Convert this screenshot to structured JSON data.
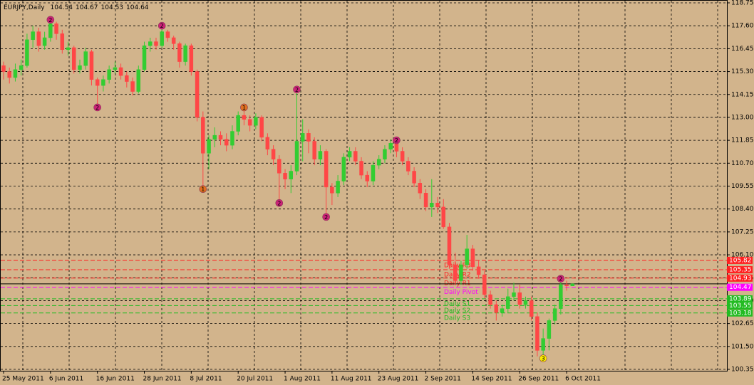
{
  "chart_data": {
    "type": "candlestick",
    "title": "EURJPY,Daily",
    "categories": [
      "25 May 2011",
      null,
      null,
      null,
      null,
      null,
      null,
      null,
      "6 Jun 2011",
      null,
      null,
      null,
      null,
      null,
      null,
      null,
      "16 Jun 2011",
      null,
      null,
      null,
      null,
      null,
      null,
      null,
      "28 Jun 2011",
      null,
      null,
      null,
      null,
      null,
      null,
      null,
      "8 Jul 2011",
      null,
      null,
      null,
      null,
      null,
      null,
      null,
      "20 Jul 2011",
      null,
      null,
      null,
      null,
      null,
      null,
      null,
      "1 Aug 2011",
      null,
      null,
      null,
      null,
      null,
      null,
      null,
      "11 Aug 2011",
      null,
      null,
      null,
      null,
      null,
      null,
      null,
      "23 Aug 2011",
      null,
      null,
      null,
      null,
      null,
      null,
      null,
      "2 Sep 2011",
      null,
      null,
      null,
      null,
      null,
      null,
      null,
      "14 Sep 2011",
      null,
      null,
      null,
      null,
      null,
      null,
      null,
      "26 Sep 2011",
      null,
      null,
      null,
      null,
      null,
      null,
      null,
      "6 Oct 2011",
      null
    ],
    "open": [
      115.6,
      115.3,
      115.0,
      115.4,
      115.6,
      116.9,
      117.3,
      116.6,
      117.0,
      117.7,
      117.2,
      116.4,
      116.5,
      115.4,
      115.6,
      116.3,
      114.9,
      114.6,
      114.9,
      115.4,
      115.5,
      115.1,
      114.8,
      114.3,
      115.4,
      116.6,
      116.8,
      116.6,
      117.3,
      117.0,
      116.7,
      115.8,
      116.6,
      115.3,
      113.0,
      111.2,
      111.9,
      112.1,
      111.9,
      111.6,
      112.3,
      113.1,
      112.9,
      112.6,
      113.0,
      112.0,
      111.4,
      110.9,
      110.2,
      109.9,
      110.3,
      111.8,
      112.2,
      111.8,
      110.9,
      111.3,
      109.5,
      109.2,
      109.8,
      111.0,
      111.3,
      110.8,
      110.1,
      109.8,
      110.6,
      110.9,
      111.4,
      111.7,
      111.3,
      110.8,
      110.3,
      109.7,
      109.2,
      108.5,
      108.7,
      108.5,
      107.5,
      105.6,
      104.8,
      105.6,
      106.4,
      105.5,
      105.1,
      104.1,
      103.6,
      103.2,
      103.4,
      104.0,
      104.2,
      103.6,
      103.8,
      103.0,
      101.3,
      101.9,
      102.8,
      103.4,
      104.6,
      104.54
    ],
    "high": [
      115.8,
      115.5,
      115.7,
      115.9,
      117.2,
      117.6,
      117.5,
      117.3,
      117.9,
      117.8,
      117.4,
      116.8,
      116.6,
      115.9,
      116.5,
      116.4,
      115.0,
      115.1,
      115.6,
      115.8,
      115.7,
      115.3,
      115.0,
      115.6,
      116.8,
      117.0,
      117.0,
      117.6,
      117.4,
      117.1,
      116.8,
      116.7,
      116.7,
      115.4,
      113.3,
      112.1,
      112.5,
      112.3,
      112.2,
      112.6,
      113.3,
      113.5,
      113.1,
      113.2,
      113.1,
      112.2,
      111.6,
      111.1,
      110.4,
      110.6,
      114.4,
      112.9,
      112.4,
      112.0,
      111.6,
      111.4,
      109.7,
      110.1,
      111.2,
      111.5,
      111.5,
      111.0,
      110.3,
      110.8,
      111.1,
      111.6,
      111.9,
      111.85,
      111.5,
      111.0,
      110.5,
      109.9,
      109.4,
      109.9,
      109.0,
      108.9,
      107.7,
      106.2,
      105.8,
      107.1,
      106.6,
      105.8,
      105.3,
      104.3,
      103.8,
      103.6,
      104.4,
      104.7,
      104.6,
      104.0,
      104.0,
      103.2,
      102.4,
      102.9,
      103.6,
      104.9,
      104.8,
      104.67
    ],
    "low": [
      114.9,
      114.7,
      114.8,
      115.1,
      115.5,
      116.5,
      116.3,
      116.4,
      116.8,
      116.9,
      116.2,
      116.1,
      115.2,
      115.2,
      115.4,
      114.6,
      113.5,
      114.3,
      114.7,
      115.2,
      114.9,
      114.5,
      114.1,
      114.2,
      115.3,
      116.3,
      116.4,
      116.5,
      116.8,
      116.4,
      115.5,
      115.6,
      115.1,
      112.8,
      109.4,
      110.4,
      111.5,
      111.6,
      111.3,
      111.4,
      112.1,
      112.6,
      112.3,
      112.4,
      111.8,
      111.1,
      110.6,
      108.7,
      109.4,
      109.2,
      110.1,
      110.8,
      111.2,
      110.6,
      110.6,
      108.0,
      108.6,
      109.0,
      109.6,
      110.8,
      110.6,
      109.9,
      109.5,
      109.6,
      110.4,
      110.7,
      111.2,
      111.0,
      110.6,
      110.1,
      109.5,
      108.9,
      108.3,
      108.0,
      108.2,
      107.4,
      105.4,
      104.6,
      104.6,
      105.4,
      105.3,
      104.9,
      103.9,
      103.4,
      102.8,
      103.0,
      103.2,
      103.8,
      103.4,
      103.4,
      102.8,
      101.0,
      100.9,
      101.3,
      102.6,
      103.1,
      104.3,
      104.53
    ],
    "close": [
      115.3,
      115.0,
      115.4,
      115.6,
      116.9,
      117.3,
      116.6,
      117.0,
      117.7,
      117.2,
      116.4,
      116.5,
      115.4,
      115.6,
      116.3,
      114.9,
      114.6,
      114.9,
      115.4,
      115.5,
      115.1,
      114.8,
      114.3,
      115.4,
      116.6,
      116.8,
      116.6,
      117.3,
      117.0,
      116.7,
      115.8,
      116.6,
      115.3,
      113.0,
      111.2,
      111.9,
      112.1,
      111.9,
      111.6,
      112.3,
      113.1,
      112.9,
      112.6,
      113.0,
      112.0,
      111.4,
      110.9,
      110.2,
      109.9,
      110.3,
      111.8,
      112.2,
      111.8,
      110.9,
      111.3,
      109.5,
      109.2,
      109.8,
      111.0,
      111.3,
      110.8,
      110.1,
      109.8,
      110.6,
      110.9,
      111.4,
      111.7,
      111.3,
      110.8,
      110.3,
      109.7,
      109.2,
      108.5,
      108.7,
      108.5,
      107.5,
      105.6,
      104.8,
      105.6,
      106.4,
      105.5,
      105.1,
      104.1,
      103.6,
      103.2,
      103.4,
      104.0,
      104.2,
      103.6,
      103.8,
      103.0,
      101.3,
      101.9,
      102.8,
      103.4,
      104.6,
      104.54,
      104.64
    ],
    "up_color": "#32cd32",
    "down_color": "#ff4646",
    "ylim": [
      100.35,
      118.75
    ],
    "yticks": [
      118.75,
      {
        "value": 117.6,
        "label": "117.60"
      },
      116.45,
      {
        "value": 115.3,
        "label": "115.30"
      },
      114.15,
      {
        "value": 113,
        "label": "113.00"
      },
      111.85,
      {
        "value": 110.7,
        "label": "110.70"
      },
      109.55,
      {
        "value": 108.4,
        "label": "108.40"
      },
      107.25,
      {
        "value": 106.1,
        "label": "106.10"
      },
      104.95,
      {
        "value": 103.8,
        "label": "103.80"
      },
      102.65,
      {
        "value": 101.5,
        "label": "101.50"
      },
      100.35
    ],
    "grid": true,
    "levels": [
      {
        "name": "Daily R3",
        "value": 105.82,
        "color": "#ff2020"
      },
      {
        "name": "Daily R2",
        "value": 105.35,
        "color": "#ff2020"
      },
      {
        "name": "Daily R1",
        "value": 104.93,
        "color": "#ff2020"
      },
      {
        "name": "Daily Pivot",
        "value": 104.47,
        "color": "#ff00ff"
      },
      {
        "name": "Daily S1",
        "value": 103.89,
        "color": "#22bb22"
      },
      {
        "name": "Daily S2",
        "value": 103.55,
        "color": "#22bb22"
      },
      {
        "name": "Daily S3",
        "value": 103.18,
        "color": "#22bb22"
      }
    ],
    "markers": [
      {
        "index": 8,
        "value": 117.9,
        "label": "2",
        "color": "#cc2277"
      },
      {
        "index": 16,
        "value": 113.5,
        "label": "2",
        "color": "#cc2277"
      },
      {
        "index": 27,
        "value": 117.6,
        "label": "2",
        "color": "#cc2277"
      },
      {
        "index": 34,
        "value": 109.4,
        "label": "1",
        "color": "#e07020"
      },
      {
        "index": 41,
        "value": 113.5,
        "label": "1",
        "color": "#e07020"
      },
      {
        "index": 47,
        "value": 108.7,
        "label": "2",
        "color": "#cc2277"
      },
      {
        "index": 50,
        "value": 114.4,
        "label": "2",
        "color": "#cc2277"
      },
      {
        "index": 55,
        "value": 108.0,
        "label": "2",
        "color": "#cc2277"
      },
      {
        "index": 67,
        "value": 111.85,
        "label": "2",
        "color": "#cc2277"
      },
      {
        "index": 92,
        "value": 100.9,
        "label": "3",
        "color": "#ffee00"
      },
      {
        "index": 95,
        "value": 104.9,
        "label": "2",
        "color": "#cc2277"
      }
    ]
  }
}
